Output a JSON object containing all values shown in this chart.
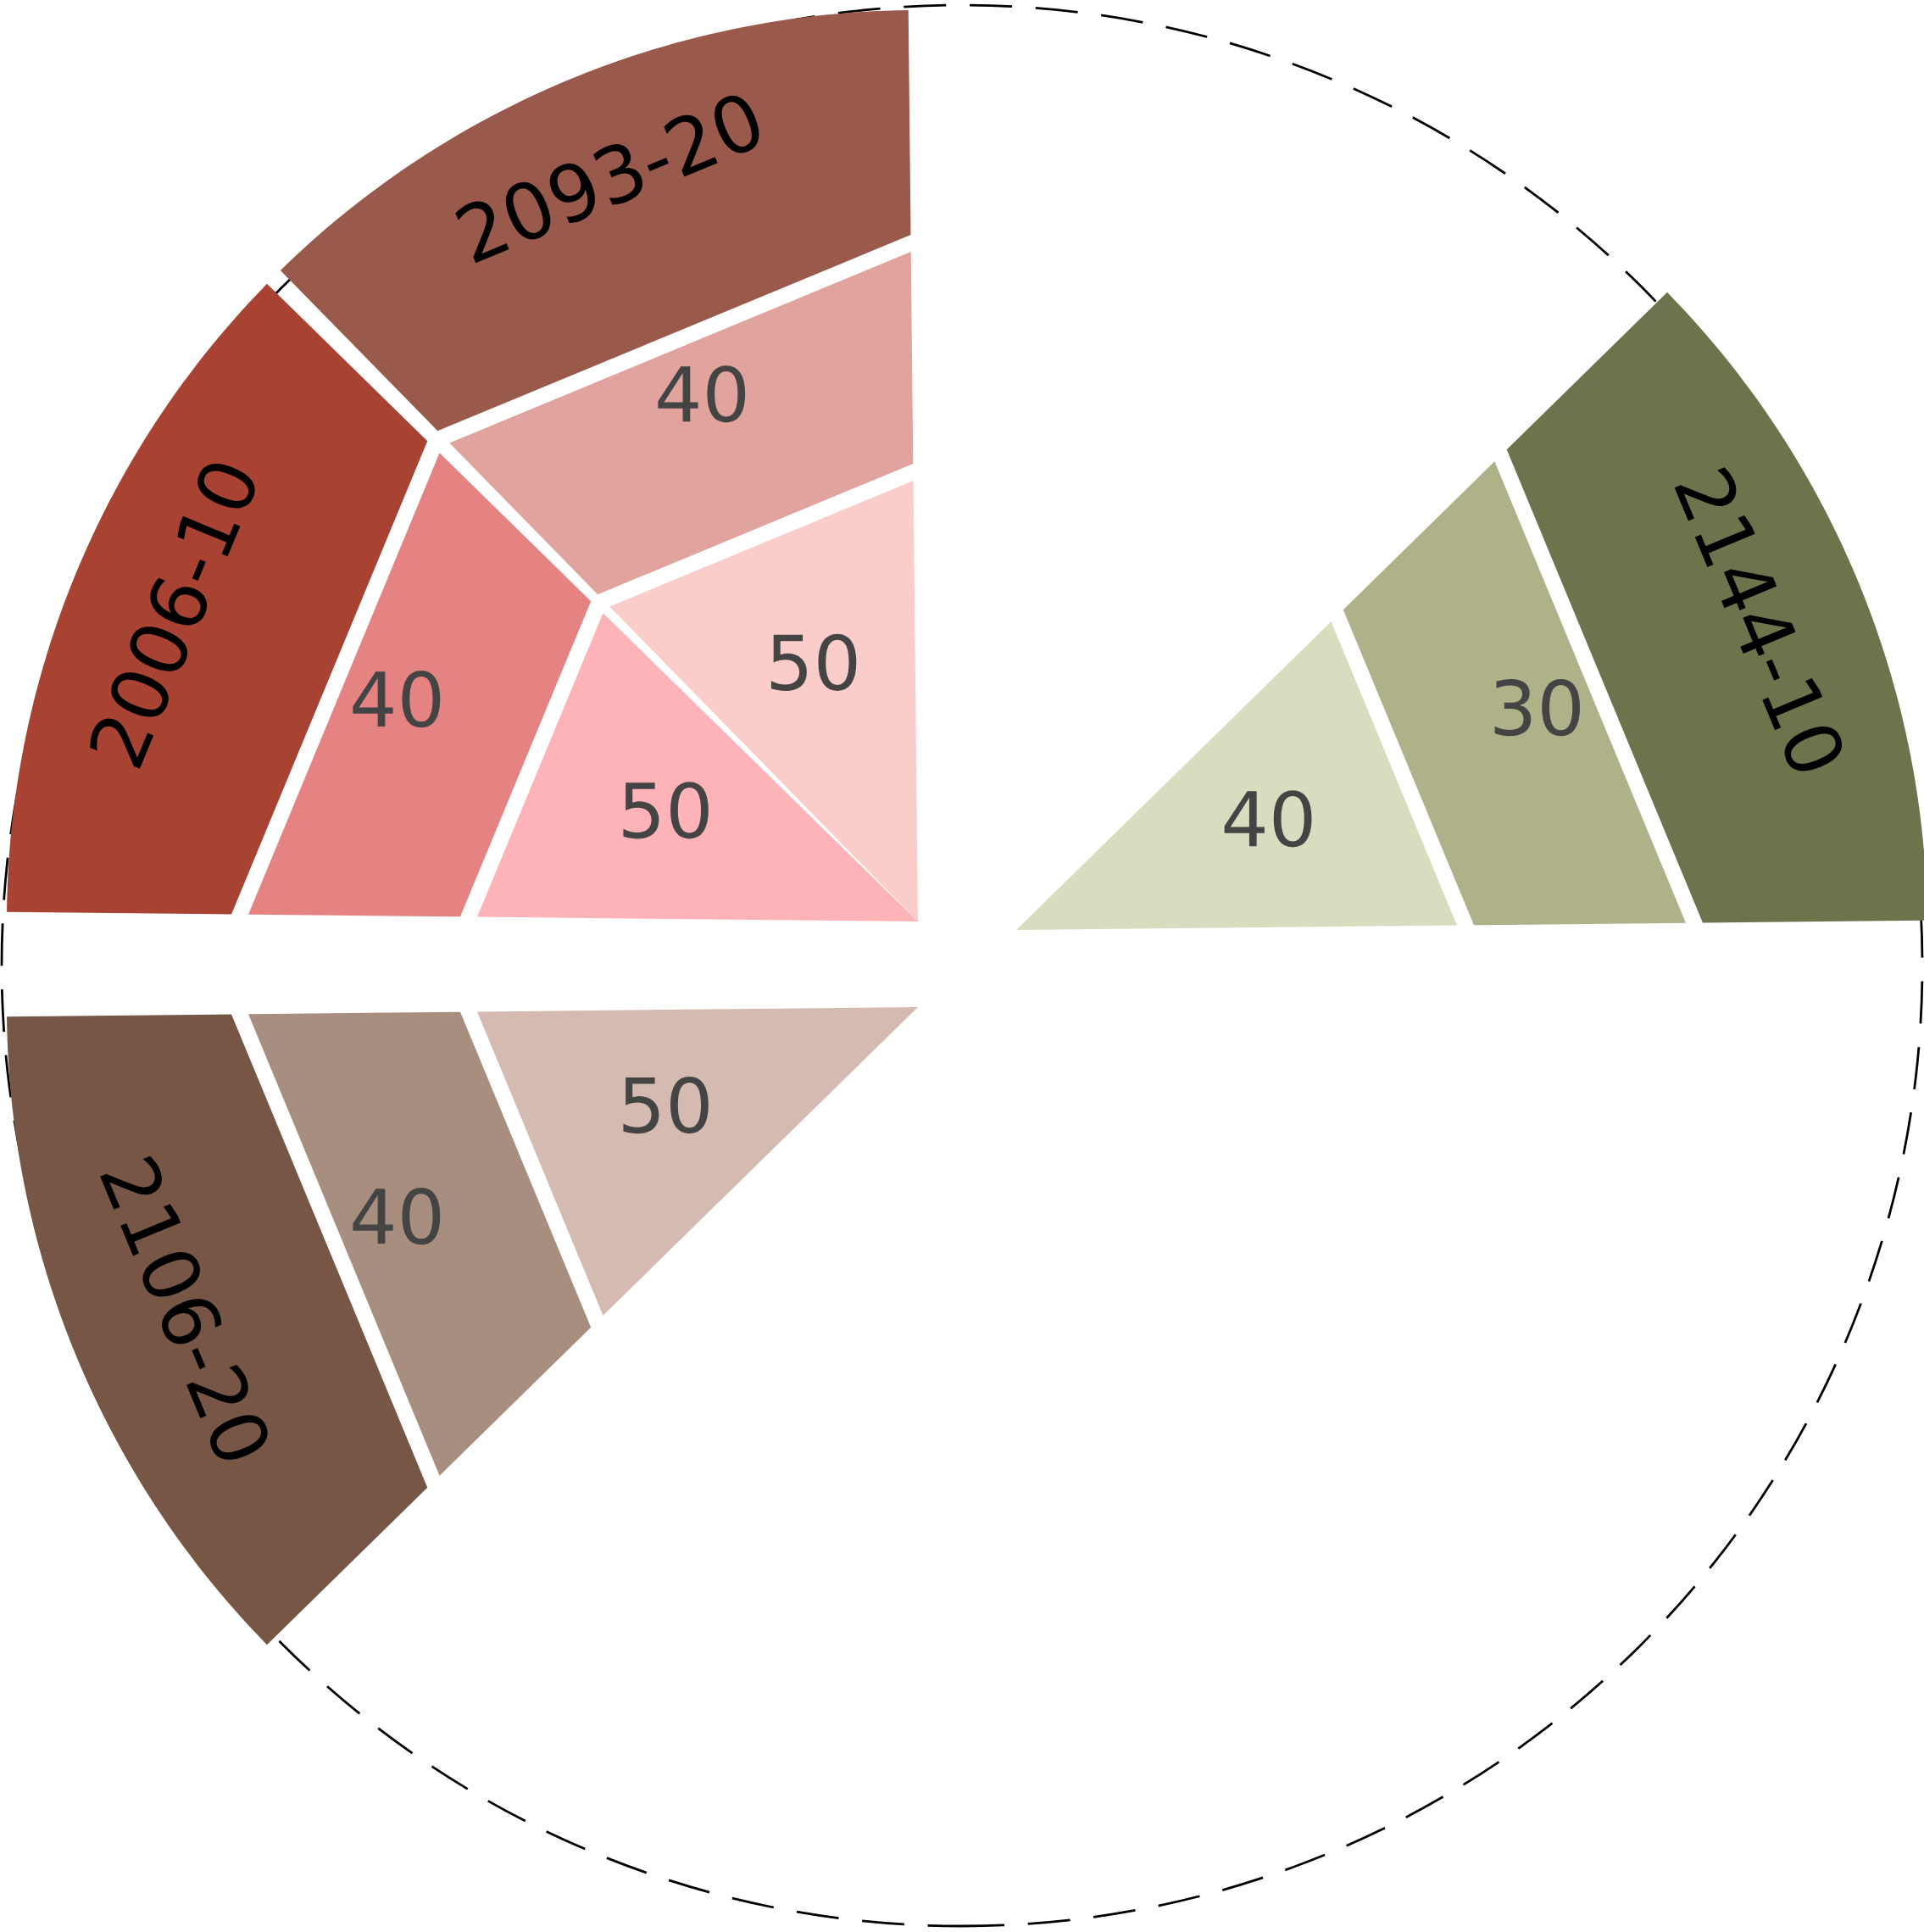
{
  "chart_data": {
    "type": "other",
    "categories": [
      "2093-20",
      "2006-10",
      "2106-20",
      "2144-10"
    ],
    "colors": [
      "#9a5a4b",
      "#a84232",
      "#775646",
      "#6f734b"
    ],
    "series": [
      {
        "values": [
          50,
          50,
          50,
          40
        ],
        "colors": [
          "#facdca",
          "#fdb3b8",
          "#d4bab1",
          "#d9ddc0"
        ]
      },
      {
        "values": [
          40,
          40,
          40,
          30
        ],
        "colors": [
          "#e1a39e",
          "#e58383",
          "#a88e7e",
          "#afb189"
        ]
      }
    ],
    "data_labels": true
  }
}
